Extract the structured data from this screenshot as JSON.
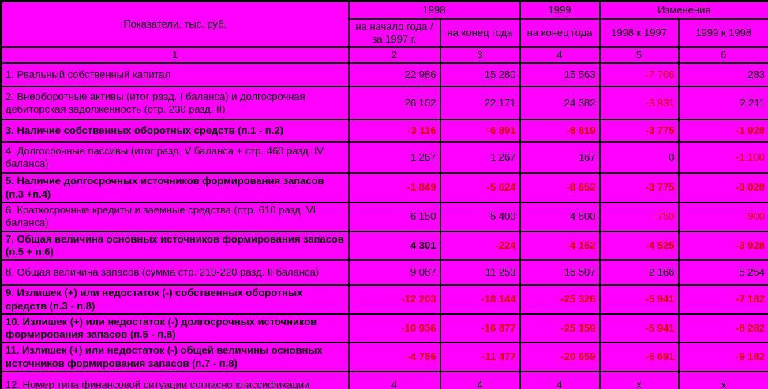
{
  "colors": {
    "background": "#FF00FF",
    "text": "#000000",
    "negative": "#CC0000",
    "border": "#000000"
  },
  "table": {
    "header": {
      "col_label": "Показатели, тыс. руб.",
      "group_1998": "1998",
      "group_1999": "1999",
      "group_changes": "Изменения",
      "sub": [
        "на начало года / за 1997 г.",
        "на конец года",
        "на конец года",
        "1998 к 1997",
        "1999 к 1998"
      ],
      "nums": [
        "1",
        "2",
        "3",
        "4",
        "5",
        "6"
      ]
    },
    "rows": [
      {
        "label": "1. Реальный собственный капитал",
        "bold": false,
        "center": false,
        "values": [
          "22 986",
          "15 280",
          "15 563",
          "-7 706",
          "283"
        ]
      },
      {
        "label": "2. Внеоборотные активы (итог разд. I баланса) и долгосрочная дебиторская задолженность (стр. 230 разд. II)",
        "bold": false,
        "center": false,
        "values": [
          "26 102",
          "22 171",
          "24 382",
          "-3 931",
          "2 211"
        ]
      },
      {
        "label": "3. Наличие собственных оборотных средств (п.1 - п.2)",
        "bold": true,
        "center": false,
        "values": [
          "-3 116",
          "-6 891",
          "-8 819",
          "-3 775",
          "-1 928"
        ]
      },
      {
        "label": "4. Долгосрочные пассивы (итог разд. V баланса + стр. 460 разд. IV баланса)",
        "bold": false,
        "center": false,
        "values": [
          "1 267",
          "1 267",
          "167",
          "0",
          "-1 100"
        ]
      },
      {
        "label": "5. Наличие долгосрочных источников формирования запасов (п.3 +п.4)",
        "bold": true,
        "center": false,
        "values": [
          "-1 849",
          "-5 624",
          "-8 652",
          "-3 775",
          "-3 028"
        ]
      },
      {
        "label": "6. Краткосрочные кредиты и заемные средства (стр. 610 разд. VI баланса)",
        "bold": false,
        "center": false,
        "values": [
          "6 150",
          "5 400",
          "4 500",
          "-750",
          "-900"
        ]
      },
      {
        "label": "7. Общая величина основных источников формирования запасов (п.5 + п.6)",
        "bold": true,
        "center": false,
        "values": [
          "4 301",
          "-224",
          "-4 152",
          "-4 525",
          "-3 928"
        ]
      },
      {
        "label": "8. Общая величина запасов (сумма стр. 210-220 разд. II баланса)",
        "bold": false,
        "center": false,
        "values": [
          "9 087",
          "11 253",
          "16 507",
          "2 166",
          "5 254"
        ]
      },
      {
        "label": "9. Излишек (+) или недостаток (-) собственных оборотных средств (п.3 - п.8)",
        "bold": true,
        "center": false,
        "values": [
          "-12 203",
          "-18 144",
          "-25 326",
          "-5 941",
          "-7 182"
        ]
      },
      {
        "label": "10. Излишек (+) или недостаток (-) долгосрочных источников формирования запасов (п.5 - п.8)",
        "bold": true,
        "center": false,
        "values": [
          "-10 936",
          "-16 877",
          "-25 159",
          "-5 941",
          "-8 282"
        ]
      },
      {
        "label": "11. Излишек (+) или недостаток (-) общей величины основных источников формирования запасов (п.7 - п.8)",
        "bold": true,
        "center": false,
        "values": [
          "-4 786",
          "-11 477",
          "-20 659",
          "-6 691",
          "-9 182"
        ]
      },
      {
        "label": "12. Номер типа финансовой ситуации согласно классификации",
        "bold": false,
        "center": true,
        "values": [
          "4",
          "4",
          "4",
          "х",
          "х"
        ]
      }
    ]
  }
}
